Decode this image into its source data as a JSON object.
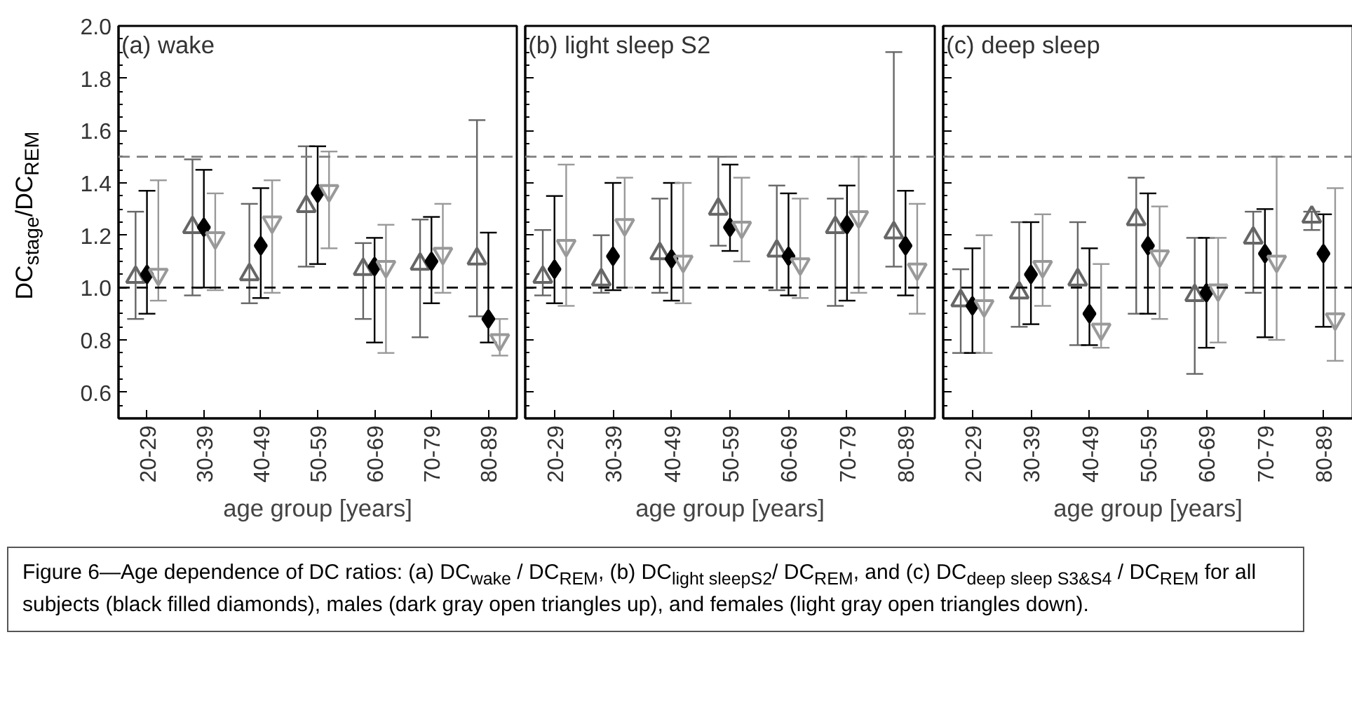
{
  "chart_data": [
    {
      "type": "scatter",
      "title": "(a) wake",
      "ylabel": "DC$_{stage}$/DC$_{REM}$",
      "xlabel": "age group [years]",
      "categories": [
        "20-29",
        "30-39",
        "40-49",
        "50-59",
        "60-69",
        "70-79",
        "80-89"
      ],
      "ylim": [
        0.5,
        2.0
      ],
      "yticks": [
        {
          "value": 0.6,
          "label": "0.6"
        },
        {
          "value": 0.8,
          "label": "0.8"
        },
        {
          "value": 1.0,
          "label": "1.0"
        },
        {
          "value": 1.2,
          "label": "1.2"
        },
        {
          "value": 1.4,
          "label": "1.4"
        },
        {
          "value": 1.6,
          "label": "1.6"
        },
        {
          "value": 1.8,
          "label": "1.8"
        },
        {
          "value": 2.0,
          "label": "2.0"
        }
      ],
      "ref_lines": [
        {
          "axis": "y",
          "value": 1.0,
          "color": "#000000",
          "line_style": "dashed"
        },
        {
          "axis": "y",
          "value": 1.5,
          "color": "#808080",
          "line_style": "dashed"
        }
      ],
      "series": [
        {
          "color": "#666666",
          "marker": "triangle",
          "values": [
            1.04,
            1.23,
            1.05,
            1.31,
            1.07,
            1.09,
            1.11
          ],
          "errors": [
            [
              0.88,
              1.29
            ],
            [
              0.97,
              1.49
            ],
            [
              0.94,
              1.32
            ],
            [
              1.08,
              1.54
            ],
            [
              0.88,
              1.17
            ],
            [
              0.81,
              1.26
            ],
            [
              0.89,
              1.64
            ]
          ]
        },
        {
          "color": "#000000",
          "marker": "diamond",
          "values": [
            1.05,
            1.23,
            1.16,
            1.36,
            1.08,
            1.1,
            0.88
          ],
          "errors": [
            [
              0.9,
              1.37
            ],
            [
              1.0,
              1.45
            ],
            [
              0.96,
              1.38
            ],
            [
              1.09,
              1.54
            ],
            [
              0.79,
              1.19
            ],
            [
              0.94,
              1.27
            ],
            [
              0.79,
              1.21
            ]
          ]
        },
        {
          "color": "#999999",
          "marker": "triangle",
          "values": [
            1.05,
            1.19,
            1.25,
            1.37,
            1.08,
            1.13,
            0.8
          ],
          "errors": [
            [
              0.95,
              1.41
            ],
            [
              0.99,
              1.36
            ],
            [
              0.98,
              1.41
            ],
            [
              1.15,
              1.52
            ],
            [
              0.75,
              1.24
            ],
            [
              0.98,
              1.32
            ],
            [
              0.74,
              0.88
            ]
          ]
        }
      ],
      "annotations": [
        "Figure 6—Age dependence of DC ratios: (a) DC$_{wake}$ / DC$_{REM}$, (b) DC$_{light sleepS2}$/ DC$_{REM}$, and (c) DC$_{deep sleep S3&S4}$ / DC$_{REM}$ for all subjects (black filled diamonds), males (dark gray open triangles up), and females (light gray open triangles down)."
      ]
    },
    {
      "type": "scatter",
      "title": "(b) light sleep S2",
      "xlabel": "age group [years]",
      "tick_labels": "x",
      "categories": [
        "20-29",
        "30-39",
        "40-49",
        "50-59",
        "60-69",
        "70-79",
        "80-89"
      ],
      "ylim": [
        0.5,
        2.0
      ],
      "yticks": [
        {
          "value": 0.6,
          "label": null
        },
        {
          "value": 0.8,
          "label": null
        },
        {
          "value": 1.0,
          "label": null
        },
        {
          "value": 1.2,
          "label": null
        },
        {
          "value": 1.4,
          "label": null
        },
        {
          "value": 1.6,
          "label": null
        },
        {
          "value": 1.8,
          "label": null
        },
        {
          "value": 2.0,
          "label": null
        }
      ],
      "ref_lines": [
        {
          "axis": "y",
          "value": 1.0,
          "color": "#000000",
          "line_style": "dashed"
        },
        {
          "axis": "y",
          "value": 1.5,
          "color": "#808080",
          "line_style": "dashed"
        }
      ],
      "series": [
        {
          "color": "#666666",
          "marker": "triangle",
          "values": [
            1.04,
            1.03,
            1.13,
            1.3,
            1.14,
            1.23,
            1.21
          ],
          "errors": [
            [
              0.97,
              1.22
            ],
            [
              0.98,
              1.2
            ],
            [
              0.98,
              1.34
            ],
            [
              1.16,
              1.5
            ],
            [
              0.99,
              1.39
            ],
            [
              0.93,
              1.34
            ],
            [
              1.08,
              1.9
            ]
          ]
        },
        {
          "color": "#000000",
          "marker": "diamond",
          "values": [
            1.07,
            1.12,
            1.11,
            1.23,
            1.12,
            1.24,
            1.16
          ],
          "errors": [
            [
              0.94,
              1.35
            ],
            [
              0.99,
              1.4
            ],
            [
              0.95,
              1.4
            ],
            [
              1.14,
              1.47
            ],
            [
              0.97,
              1.36
            ],
            [
              0.95,
              1.39
            ],
            [
              0.97,
              1.37
            ]
          ]
        },
        {
          "color": "#999999",
          "marker": "triangle",
          "values": [
            1.16,
            1.24,
            1.1,
            1.23,
            1.09,
            1.27,
            1.07
          ],
          "errors": [
            [
              0.93,
              1.47
            ],
            [
              1.0,
              1.42
            ],
            [
              0.94,
              1.4
            ],
            [
              1.1,
              1.42
            ],
            [
              0.96,
              1.34
            ],
            [
              0.98,
              1.5
            ],
            [
              0.9,
              1.32
            ]
          ]
        }
      ]
    },
    {
      "type": "scatter",
      "title": "(c) deep sleep",
      "xlabel": "age group [years]",
      "tick_labels": "x",
      "categories": [
        "20-29",
        "30-39",
        "40-49",
        "50-59",
        "60-69",
        "70-79",
        "80-89"
      ],
      "ylim": [
        0.5,
        2.0
      ],
      "yticks": [
        {
          "value": 0.6,
          "label": null
        },
        {
          "value": 0.8,
          "label": null
        },
        {
          "value": 1.0,
          "label": null
        },
        {
          "value": 1.2,
          "label": null
        },
        {
          "value": 1.4,
          "label": null
        },
        {
          "value": 1.6,
          "label": null
        },
        {
          "value": 1.8,
          "label": null
        },
        {
          "value": 2.0,
          "label": null
        }
      ],
      "ref_lines": [
        {
          "axis": "y",
          "value": 1.0,
          "color": "#000000",
          "line_style": "dashed"
        },
        {
          "axis": "y",
          "value": 1.5,
          "color": "#808080",
          "line_style": "dashed"
        }
      ],
      "series": [
        {
          "color": "#666666",
          "marker": "triangle",
          "values": [
            0.95,
            0.98,
            1.03,
            1.26,
            0.97,
            1.19,
            1.27
          ],
          "errors": [
            [
              0.75,
              1.07
            ],
            [
              0.85,
              1.25
            ],
            [
              0.78,
              1.25
            ],
            [
              0.9,
              1.42
            ],
            [
              0.67,
              1.19
            ],
            [
              0.98,
              1.29
            ],
            [
              1.22,
              1.29
            ]
          ]
        },
        {
          "color": "#000000",
          "marker": "diamond",
          "values": [
            0.93,
            1.05,
            0.9,
            1.16,
            0.98,
            1.13,
            1.13
          ],
          "errors": [
            [
              0.75,
              1.15
            ],
            [
              0.86,
              1.25
            ],
            [
              0.78,
              1.15
            ],
            [
              0.9,
              1.36
            ],
            [
              0.77,
              1.19
            ],
            [
              0.81,
              1.3
            ],
            [
              0.85,
              1.28
            ]
          ]
        },
        {
          "color": "#999999",
          "marker": "triangle",
          "values": [
            0.93,
            1.08,
            0.84,
            1.12,
            0.99,
            1.1,
            0.88
          ],
          "errors": [
            [
              0.75,
              1.2
            ],
            [
              0.93,
              1.28
            ],
            [
              0.77,
              1.09
            ],
            [
              0.88,
              1.31
            ],
            [
              0.79,
              1.19
            ],
            [
              0.8,
              1.5
            ],
            [
              0.72,
              1.38
            ]
          ]
        }
      ]
    }
  ]
}
